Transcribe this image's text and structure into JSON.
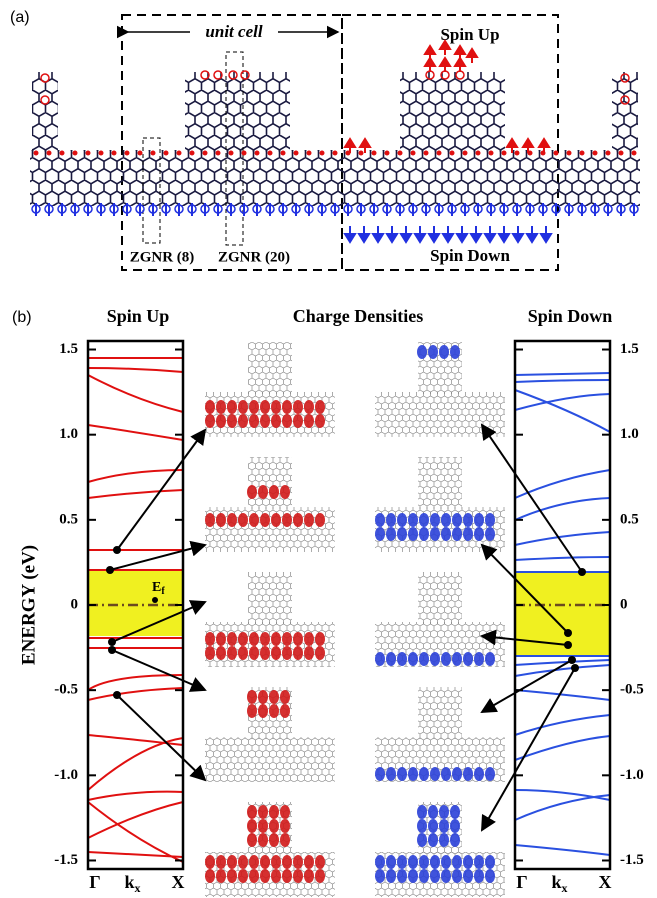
{
  "panel_a": {
    "label": "(a)",
    "unit_cell": "unit cell",
    "spin_up": "Spin Up",
    "spin_down": "Spin Down",
    "zgnr_8": "ZGNR (8)",
    "zgnr_20": "ZGNR (20)"
  },
  "panel_b": {
    "label": "(b)",
    "spin_up_title": "Spin Up",
    "charge_title": "Charge Densities",
    "spin_down_title": "Spin Down",
    "y_axis_label": "ENERGY (eV)",
    "ylim": [
      -1.55,
      1.55
    ],
    "yticks": [
      1.5,
      {
        "value": 1,
        "label": "1.0"
      },
      0.5,
      0,
      -0.5,
      {
        "value": -1,
        "label": "-1.0"
      },
      -1.5
    ],
    "fermi_label": "E",
    "fermi_sub": "f",
    "x_labels": {
      "gamma": "Γ",
      "k": "k",
      "k_sub": "x",
      "x": "X"
    }
  }
}
